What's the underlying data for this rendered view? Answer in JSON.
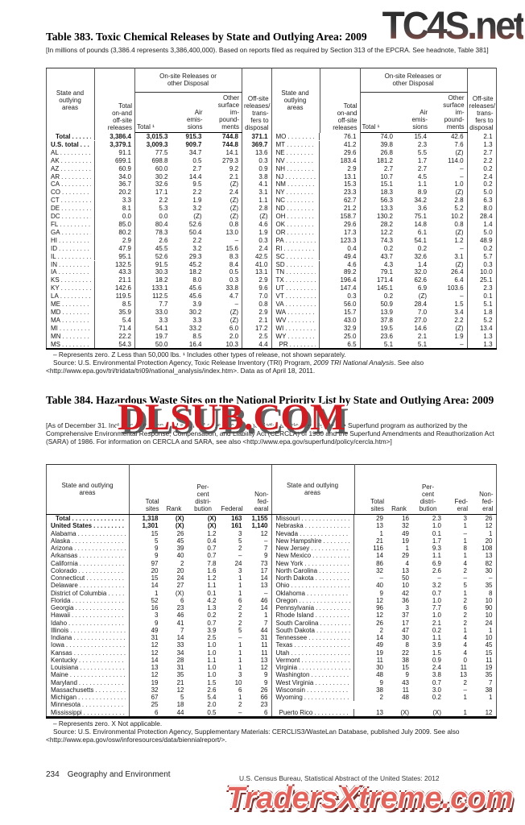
{
  "watermarks": {
    "top": "TC4S.net",
    "middle": "DLSUB.COM",
    "bottom": "TradersXtreme.com",
    "red": "#cf1d23"
  },
  "table383": {
    "title": "Table 383. Toxic Chemical Releases by State and Outlying Area: 2009",
    "headnote": "[In millions of pounds (3,386.4 represents 3,386,400,000). Based on reports filed as required by Section 313 of the EPCRA. See headnote, Table 381]",
    "headers": {
      "state": "State and\noutlying\nareas",
      "total": "Total\non-and\noff-site\nreleases",
      "group": "On-site Releases or\nother Disposal",
      "t1": "Total ¹",
      "air": "Air\nemis-\nsions",
      "surface": "Other\nsurface\nim-\npound-\nments",
      "offsite": "Off-site\nreleases/\ntrans-\nfers to\ndisposal"
    },
    "left_rows": [
      [
        "Total",
        "3,386.4",
        "3,015.3",
        "915.3",
        "744.8",
        "371.1"
      ],
      [
        "U.S. total",
        "3,379.1",
        "3,009.3",
        "909.7",
        "744.8",
        "369.7"
      ],
      [
        "AL",
        "91.1",
        "77.5",
        "34.7",
        "14.1",
        "13.6"
      ],
      [
        "AK",
        "699.1",
        "698.8",
        "0.5",
        "279.3",
        "0.3"
      ],
      [
        "AZ",
        "60.9",
        "60.0",
        "2.7",
        "9.2",
        "0.9"
      ],
      [
        "AR",
        "34.0",
        "30.2",
        "14.4",
        "2.1",
        "3.8"
      ],
      [
        "CA",
        "36.7",
        "32.6",
        "9.5",
        "(Z)",
        "4.1"
      ],
      [
        "CO",
        "20.2",
        "17.1",
        "2.2",
        "2.4",
        "3.1"
      ],
      [
        "CT",
        "3.3",
        "2.2",
        "1.9",
        "(Z)",
        "1.1"
      ],
      [
        "DE",
        "8.1",
        "5.3",
        "3.2",
        "(Z)",
        "2.8"
      ],
      [
        "DC",
        "0.0",
        "0.0",
        "(Z)",
        "(Z)",
        "(Z)"
      ],
      [
        "FL",
        "85.0",
        "80.4",
        "52.6",
        "0.8",
        "4.6"
      ],
      [
        "GA",
        "80.2",
        "78.3",
        "50.4",
        "13.0",
        "1.9"
      ],
      [
        "HI",
        "2.9",
        "2.6",
        "2.2",
        "–",
        "0.3"
      ],
      [
        "ID",
        "47.9",
        "45.5",
        "3.2",
        "15.6",
        "2.4"
      ],
      [
        "IL",
        "95.1",
        "52.6",
        "29.3",
        "8.3",
        "42.5"
      ],
      [
        "IN",
        "132.5",
        "91.5",
        "45.2",
        "8.4",
        "41.0"
      ],
      [
        "IA",
        "43.3",
        "30.3",
        "18.2",
        "0.5",
        "13.1"
      ],
      [
        "KS",
        "21.1",
        "18.2",
        "8.0",
        "0.3",
        "2.9"
      ],
      [
        "KY",
        "142.6",
        "133.1",
        "45.6",
        "33.8",
        "9.6"
      ],
      [
        "LA",
        "119.5",
        "112.5",
        "45.6",
        "4.7",
        "7.0"
      ],
      [
        "ME",
        "8.5",
        "7.7",
        "3.9",
        "–",
        "0.8"
      ],
      [
        "MD",
        "35.9",
        "33.0",
        "30.2",
        "(Z)",
        "2.9"
      ],
      [
        "MA",
        "5.4",
        "3.3",
        "3.3",
        "(Z)",
        "2.1"
      ],
      [
        "MI",
        "71.4",
        "54.1",
        "33.2",
        "6.0",
        "17.2"
      ],
      [
        "MN",
        "22.2",
        "19.7",
        "8.5",
        "2.0",
        "2.5"
      ],
      [
        "MS",
        "54.3",
        "50.0",
        "16.4",
        "10.3",
        "4.4"
      ]
    ],
    "right_rows": [
      [
        "MO",
        "76.1",
        "74.0",
        "15.4",
        "42.6",
        "2.1"
      ],
      [
        "MT",
        "41.2",
        "39.8",
        "2.3",
        "7.6",
        "1.3"
      ],
      [
        "NE",
        "29.6",
        "26.8",
        "5.5",
        "(Z)",
        "2.7"
      ],
      [
        "NV",
        "183.4",
        "181.2",
        "1.7",
        "114.0",
        "2.2"
      ],
      [
        "NH",
        "2.9",
        "2.7",
        "2.7",
        "–",
        "0.2"
      ],
      [
        "NJ",
        "13.1",
        "10.7",
        "4.5",
        "–",
        "2.4"
      ],
      [
        "NM",
        "15.3",
        "15.1",
        "1.1",
        "1.0",
        "0.2"
      ],
      [
        "NY",
        "23.3",
        "18.3",
        "8.9",
        "(Z)",
        "5.0"
      ],
      [
        "NC",
        "62.7",
        "56.3",
        "34.2",
        "2.8",
        "6.3"
      ],
      [
        "ND",
        "21.2",
        "13.3",
        "3.6",
        "5.2",
        "8.0"
      ],
      [
        "OH",
        "158.7",
        "130.2",
        "75.1",
        "10.2",
        "28.4"
      ],
      [
        "OK",
        "29.6",
        "28.2",
        "14.8",
        "0.8",
        "1.4"
      ],
      [
        "OR",
        "17.3",
        "12.2",
        "6.1",
        "(Z)",
        "5.0"
      ],
      [
        "PA",
        "123.3",
        "74.3",
        "54.1",
        "1.2",
        "48.9"
      ],
      [
        "RI",
        "0.4",
        "0.2",
        "0.2",
        "–",
        "0.2"
      ],
      [
        "SC",
        "49.4",
        "43.7",
        "32.6",
        "3.1",
        "5.7"
      ],
      [
        "SD",
        "4.6",
        "4.3",
        "1.4",
        "(Z)",
        "0.3"
      ],
      [
        "TN",
        "89.2",
        "79.1",
        "32.0",
        "26.4",
        "10.0"
      ],
      [
        "TX",
        "196.4",
        "171.4",
        "62.6",
        "6.4",
        "25.1"
      ],
      [
        "UT",
        "147.4",
        "145.1",
        "6.9",
        "103.6",
        "2.3"
      ],
      [
        "VT",
        "0.3",
        "0.2",
        "(Z)",
        "–",
        "0.1"
      ],
      [
        "VA",
        "56.0",
        "50.9",
        "28.4",
        "1.5",
        "5.1"
      ],
      [
        "WA",
        "15.7",
        "13.9",
        "7.0",
        "3.4",
        "1.8"
      ],
      [
        "WV",
        "43.0",
        "37.8",
        "27.0",
        "2.2",
        "5.2"
      ],
      [
        "WI",
        "32.9",
        "19.5",
        "14.6",
        "(Z)",
        "13.4"
      ],
      [
        "WY",
        "25.0",
        "23.6",
        "2.1",
        "1.9",
        "1.3"
      ],
      [
        "PR",
        "6.5",
        "5.1",
        "5.1",
        "–",
        "1.3"
      ]
    ],
    "footnote": "– Represents zero. Z Less than 50,000 lbs. ¹ Includes other types of release, not shown separately.",
    "source_a": "Source: U.S. Environmental Protection Agency, Toxic Release Inventory (TRI) Program, ",
    "source_it": "2009 TRI National Analysis",
    "source_b": ". See also <http://www.epa.gov/tri/tridata/tri09/national_analysis/index.htm>. Data as of April 18, 2011."
  },
  "table384": {
    "title": "Table 384. Hazardous Waste Sites on the National Priority List by State and Outlying Area: 2009",
    "headnote": "[As of December 31. Includes both proposed and final sites listed on the National Priorities List for the Superfund program as authorized by the Comprehensive Environmental Response, Compensation, and Liability Act (CERCLA) of 1980 and the Superfund Amendments and Reauthorization Act (SARA) of 1986. For information on CERCLA and SARA, see also <http://www.epa.gov/superfund/policy/cercla.htm>]",
    "headers_left": {
      "state": "State and outlying\nareas",
      "sites": "Total\nsites",
      "rank": "Rank",
      "pct": "Per-\ncent\ndistri-\nbution",
      "federal": "Federal",
      "nonfederal": "Non-\nfed-\nearal"
    },
    "headers_right": {
      "state": "State and outlying\nareas",
      "sites": "Total\nsites",
      "rank": "Rank",
      "pct": "Per-\ncent\ndistri-\nbution",
      "federal": "Fed-\neral",
      "nonfederal": "Non-\nfed-\neral"
    },
    "left_rows": [
      [
        "Total",
        "1,318",
        "(X)",
        "(X)",
        "163",
        "1,155"
      ],
      [
        "United States",
        "1,301",
        "(X)",
        "(X)",
        "161",
        "1,140"
      ],
      [
        "Alabama",
        "15",
        "26",
        "1.2",
        "3",
        "12"
      ],
      [
        "Alaska",
        "5",
        "45",
        "0.4",
        "5",
        "–"
      ],
      [
        "Arizona",
        "9",
        "39",
        "0.7",
        "2",
        "7"
      ],
      [
        "Arkansas",
        "9",
        "40",
        "0.7",
        "–",
        "9"
      ],
      [
        "California",
        "97",
        "2",
        "7.8",
        "24",
        "73"
      ],
      [
        "Colorado",
        "20",
        "20",
        "1.6",
        "3",
        "17"
      ],
      [
        "Connecticut",
        "15",
        "24",
        "1.2",
        "1",
        "14"
      ],
      [
        "Delaware",
        "14",
        "27",
        "1.1",
        "1",
        "13"
      ],
      [
        "District of Columbia",
        "1",
        "(X)",
        "0.1",
        "1",
        "–"
      ],
      [
        "Florida",
        "52",
        "6",
        "4.2",
        "6",
        "46"
      ],
      [
        "Georgia",
        "16",
        "23",
        "1.3",
        "2",
        "14"
      ],
      [
        "Hawaii",
        "3",
        "46",
        "0.2",
        "2",
        "1"
      ],
      [
        "Idaho",
        "9",
        "41",
        "0.7",
        "2",
        "7"
      ],
      [
        "Illinois",
        "49",
        "7",
        "3.9",
        "5",
        "44"
      ],
      [
        "Indiana",
        "31",
        "14",
        "2.5",
        "–",
        "31"
      ],
      [
        "Iowa",
        "12",
        "33",
        "1.0",
        "1",
        "11"
      ],
      [
        "Kansas",
        "12",
        "34",
        "1.0",
        "1",
        "11"
      ],
      [
        "Kentucky",
        "14",
        "28",
        "1.1",
        "1",
        "13"
      ],
      [
        "Louisiana",
        "13",
        "31",
        "1.0",
        "1",
        "12"
      ],
      [
        "Maine",
        "12",
        "35",
        "1.0",
        "3",
        "9"
      ],
      [
        "Maryland",
        "19",
        "21",
        "1.5",
        "10",
        "9"
      ],
      [
        "Massachusetts",
        "32",
        "12",
        "2.6",
        "6",
        "26"
      ],
      [
        "Michigan",
        "67",
        "5",
        "5.4",
        "1",
        "66"
      ],
      [
        "Minnesota",
        "25",
        "18",
        "2.0",
        "2",
        "23"
      ],
      [
        "Mississippi",
        "6",
        "44",
        "0.5",
        "–",
        "6"
      ]
    ],
    "right_rows": [
      [
        "Missouri",
        "29",
        "16",
        "2.3",
        "3",
        "26"
      ],
      [
        "Nebraska",
        "13",
        "32",
        "1.0",
        "1",
        "12"
      ],
      [
        "Nevada",
        "1",
        "49",
        "0.1",
        "–",
        "1"
      ],
      [
        "New Hampshire",
        "21",
        "19",
        "1.7",
        "1",
        "20"
      ],
      [
        "New Jersey",
        "116",
        "1",
        "9.3",
        "8",
        "108"
      ],
      [
        "New Mexico",
        "14",
        "29",
        "1.1",
        "1",
        "13"
      ],
      [
        "New York",
        "86",
        "4",
        "6.9",
        "4",
        "82"
      ],
      [
        "North Carolina",
        "32",
        "13",
        "2.6",
        "2",
        "30"
      ],
      [
        "North Dakota",
        "–",
        "50",
        "–",
        "–",
        "–"
      ],
      [
        "Ohio",
        "40",
        "10",
        "3.2",
        "5",
        "35"
      ],
      [
        "Oklahoma",
        "9",
        "42",
        "0.7",
        "1",
        "8"
      ],
      [
        "Oregon",
        "12",
        "36",
        "1.0",
        "2",
        "10"
      ],
      [
        "Pennsylvania",
        "96",
        "3",
        "7.7",
        "6",
        "90"
      ],
      [
        "Rhode Island",
        "12",
        "37",
        "1.0",
        "2",
        "10"
      ],
      [
        "South Carolina",
        "26",
        "17",
        "2.1",
        "2",
        "24"
      ],
      [
        "South Dakota",
        "2",
        "47",
        "0.2",
        "1",
        "1"
      ],
      [
        "Tennessee",
        "14",
        "30",
        "1.1",
        "4",
        "10"
      ],
      [
        "Texas",
        "49",
        "8",
        "3.9",
        "4",
        "45"
      ],
      [
        "Utah",
        "19",
        "22",
        "1.5",
        "4",
        "15"
      ],
      [
        "Vermont",
        "11",
        "38",
        "0.9",
        "0",
        "11"
      ],
      [
        "Virginia",
        "30",
        "15",
        "2.4",
        "11",
        "19"
      ],
      [
        "Washington",
        "48",
        "9",
        "3.8",
        "13",
        "35"
      ],
      [
        "West Virginia",
        "9",
        "43",
        "0.7",
        "2",
        "7"
      ],
      [
        "Wisconsin",
        "38",
        "11",
        "3.0",
        "–",
        "38"
      ],
      [
        "Wyoming",
        "2",
        "48",
        "0.2",
        "1",
        "1"
      ],
      [],
      [
        "Puerto Rico",
        "13",
        "(X)",
        "(X)",
        "1",
        "12"
      ]
    ],
    "footnote": "– Represents zero. X Not applicable.",
    "source": "Source: U.S. Environmental Protection Agency, Supplementary Materials: CERCLIS3/WasteLan Database, published July 2009. See also <http://www.epa.gov/osw/inforesources/data/biennialreport/>."
  },
  "footer": {
    "page_number": "234",
    "section": "Geography and Environment",
    "source": "U.S. Census Bureau, Statistical Abstract of the United States: 2012"
  }
}
